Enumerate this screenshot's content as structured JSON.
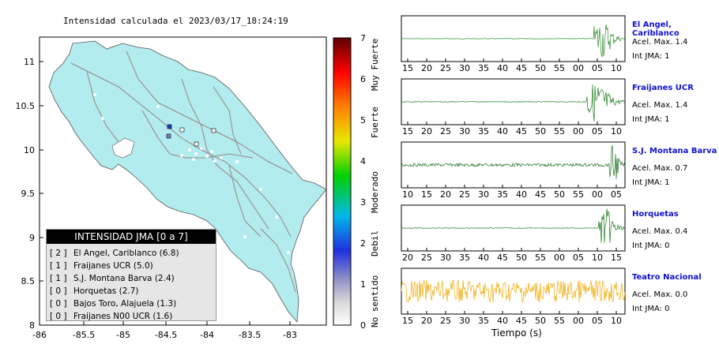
{
  "map": {
    "title": "Intensidad calculada el 2023/03/17_18:24:19",
    "x_ticks": [
      "-86",
      "-85.5",
      "-85",
      "-84.5",
      "-84",
      "-83.5",
      "-83"
    ],
    "y_ticks": [
      "11",
      "10.5",
      "10",
      "9.5",
      "9",
      "8.5",
      "8"
    ],
    "land_color": "#b3ecee",
    "stations": [
      {
        "color": "#1e3cc8"
      },
      {
        "color": "#8080c0"
      },
      {
        "color": "#ffffff"
      },
      {
        "color": "#ffffff"
      },
      {
        "color": "#ffffff"
      }
    ]
  },
  "legend": {
    "title": "INTENSIDAD JMA [0 a 7]",
    "items": [
      {
        "level": "[ 2 ]",
        "label": "El Angel, Cariblanco (6.8)"
      },
      {
        "level": "[ 1 ]",
        "label": "Fraijanes UCR (5.0)"
      },
      {
        "level": "[ 1 ]",
        "label": "S.J. Montana Barva (2.4)"
      },
      {
        "level": "[ 0 ]",
        "label": "Horquetas (2.7)"
      },
      {
        "level": "[ 0 ]",
        "label": "Bajos Toro, Alajuela (1.3)"
      },
      {
        "level": "[ 0 ]",
        "label": "Fraijanes N00 UCR (1.6)"
      }
    ]
  },
  "colorbar": {
    "ticks": [
      "7",
      "6",
      "5",
      "4",
      "3",
      "2",
      "1",
      "0"
    ],
    "words": [
      "Muy Fuerte",
      "Fuerte",
      "Moderado",
      "Debil",
      "No sentido"
    ]
  },
  "traces": [
    {
      "name": "El Angel, Cariblanco",
      "acel": "Acel. Max. 1.4",
      "int": "Int JMA: 1",
      "color": "#2e8b2e",
      "ticks": [
        "15",
        "20",
        "25",
        "30",
        "35",
        "40",
        "45",
        "50",
        "55",
        "00",
        "05",
        "10"
      ]
    },
    {
      "name": "Fraijanes UCR",
      "acel": "Acel. Max. 1.4",
      "int": "Int JMA: 1",
      "color": "#1a7a1a",
      "ticks": [
        "15",
        "20",
        "25",
        "30",
        "35",
        "40",
        "45",
        "50",
        "55",
        "00",
        "05",
        "10"
      ]
    },
    {
      "name": "S.J. Montana Barva",
      "acel": "Acel. Max. 0.7",
      "int": "Int JMA: 1",
      "color": "#1a6e1a",
      "ticks": [
        "10",
        "15",
        "20",
        "25",
        "30",
        "35",
        "40",
        "45",
        "50",
        "55",
        "00",
        "05"
      ]
    },
    {
      "name": "Horquetas",
      "acel": "Acel. Max. 0.4",
      "int": "Int JMA: 0",
      "color": "#1a7a1a",
      "ticks": [
        "20",
        "25",
        "30",
        "35",
        "40",
        "45",
        "50",
        "55",
        "00",
        "05",
        "10",
        "15"
      ]
    },
    {
      "name": "Teatro Nacional",
      "acel": "Acel. Max. 0.0",
      "int": "Int JMA: 0",
      "color": "#f0a800",
      "ticks": [
        "15",
        "20",
        "25",
        "30",
        "35",
        "40",
        "45",
        "50",
        "55",
        "00",
        "05",
        "10"
      ]
    }
  ],
  "xlabel": "Tiempo (s)"
}
